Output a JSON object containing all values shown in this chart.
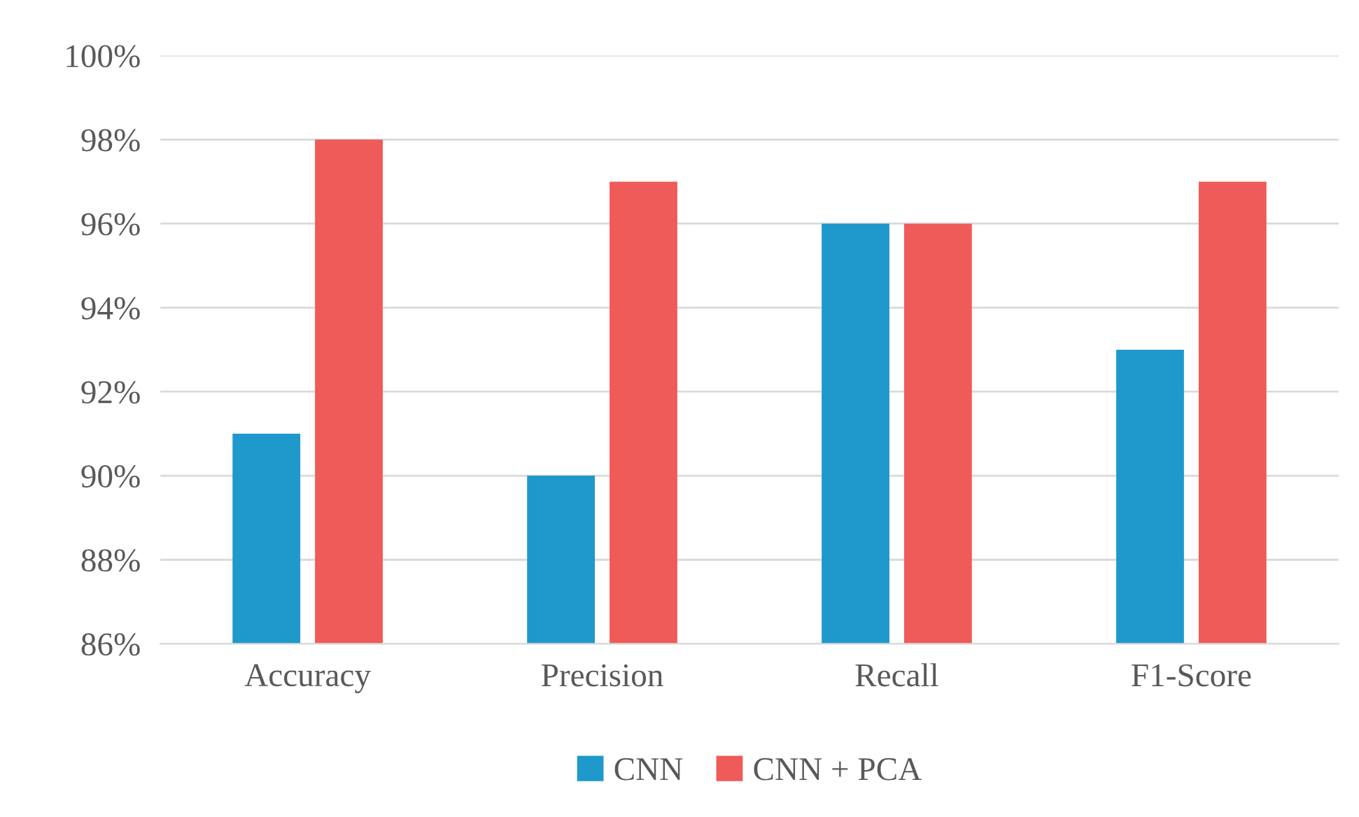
{
  "chart_data": {
    "type": "bar",
    "categories": [
      "Accuracy",
      "Precision",
      "Recall",
      "F1-Score"
    ],
    "series": [
      {
        "name": "CNN",
        "color": "#1f98cc",
        "values": [
          91,
          90,
          96,
          93
        ]
      },
      {
        "name": "CNN + PCA",
        "color": "#ee5b58",
        "values": [
          98,
          97,
          96,
          97
        ]
      }
    ],
    "ylim": [
      86,
      100
    ],
    "yticks": [
      {
        "value": 86,
        "label": "86%"
      },
      {
        "value": 88,
        "label": "88%"
      },
      {
        "value": 90,
        "label": "90%"
      },
      {
        "value": 92,
        "label": "92%"
      },
      {
        "value": 94,
        "label": "94%"
      },
      {
        "value": 96,
        "label": "96%"
      },
      {
        "value": 98,
        "label": "98%"
      },
      {
        "value": 100,
        "label": "100%"
      }
    ],
    "grid": "y",
    "legend": "bottom"
  }
}
